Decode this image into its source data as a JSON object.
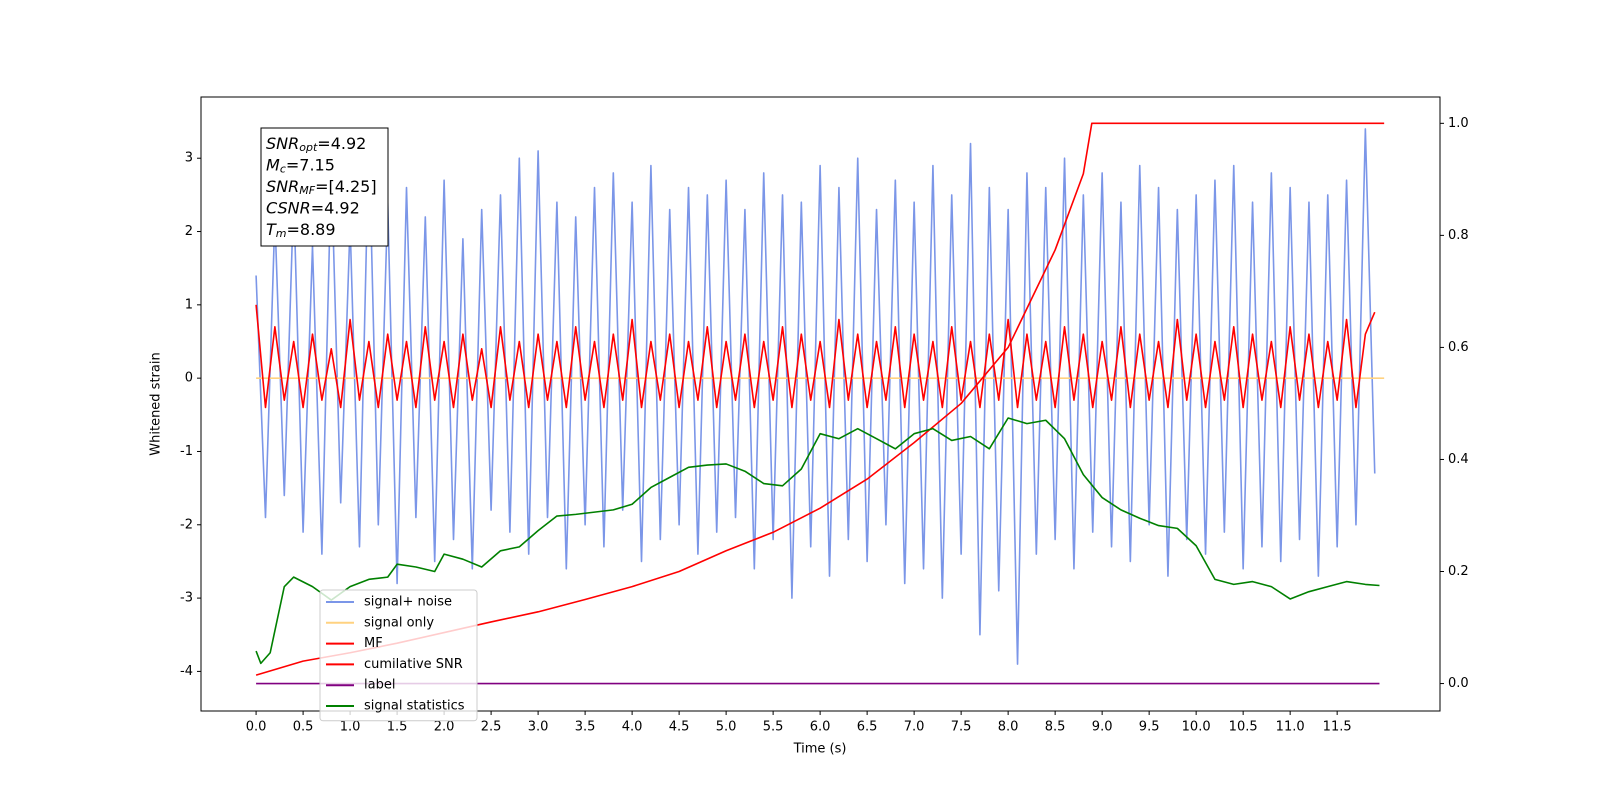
{
  "chart_data": {
    "type": "line",
    "xlabel": "Time (s)",
    "ylabel": "Whitened strain",
    "xlim": [
      -0.586,
      12.594
    ],
    "ylim": [
      -4.54,
      3.835
    ],
    "y2lim": [
      -0.049,
      1.047
    ],
    "xticks": [
      {
        "value": 0,
        "label": "0.0"
      },
      0.5,
      {
        "value": 1,
        "label": "1.0"
      },
      1.5,
      {
        "value": 2,
        "label": "2.0"
      },
      2.5,
      {
        "value": 3,
        "label": "3.0"
      },
      3.5,
      {
        "value": 4,
        "label": "4.0"
      },
      4.5,
      {
        "value": 5,
        "label": "5.0"
      },
      5.5,
      {
        "value": 6,
        "label": "6.0"
      },
      6.5,
      {
        "value": 7,
        "label": "7.0"
      },
      7.5,
      {
        "value": 8,
        "label": "8.0"
      },
      8.5,
      {
        "value": 9,
        "label": "9.0"
      },
      9.5,
      {
        "value": 10,
        "label": "10.0"
      },
      10.5,
      {
        "value": 11,
        "label": "11.0"
      },
      11.5
    ],
    "yticks": [
      -4,
      -3,
      -2,
      -1,
      0,
      1,
      2,
      3
    ],
    "y2ticks": [
      {
        "value": 0,
        "label": "0.0"
      },
      0.2,
      0.4,
      0.6,
      0.8,
      {
        "value": 1,
        "label": "1.0"
      }
    ],
    "legend": "lower left",
    "annotations": [
      {
        "text": "SNR",
        "sub": "opt",
        "rest": "=4.92"
      },
      {
        "text": "M",
        "sub": "c",
        "rest": "=7.15"
      },
      {
        "text": "SNR",
        "sub": "MF",
        "rest": "=[4.25]"
      },
      {
        "text": "CSNR",
        "rest": "=4.92"
      },
      {
        "text": "T",
        "sub": "m",
        "rest": "=8.89"
      }
    ],
    "x": [
      0,
      0.1,
      0.2,
      0.3,
      0.4,
      0.5,
      0.6,
      0.7,
      0.8,
      0.9,
      1,
      1.1,
      1.2,
      1.3,
      1.4,
      1.5,
      1.6,
      1.7,
      1.8,
      1.9,
      2,
      2.1,
      2.2,
      2.3,
      2.4,
      2.5,
      2.6,
      2.7,
      2.8,
      2.9,
      3,
      3.1,
      3.2,
      3.3,
      3.4,
      3.5,
      3.6,
      3.7,
      3.8,
      3.9,
      4,
      4.1,
      4.2,
      4.3,
      4.4,
      4.5,
      4.6,
      4.7,
      4.8,
      4.9,
      5,
      5.1,
      5.2,
      5.3,
      5.4,
      5.5,
      5.6,
      5.7,
      5.8,
      5.9,
      6,
      6.1,
      6.2,
      6.3,
      6.4,
      6.5,
      6.6,
      6.7,
      6.8,
      6.9,
      7,
      7.1,
      7.2,
      7.3,
      7.4,
      7.5,
      7.6,
      7.7,
      7.8,
      7.9,
      8,
      8.1,
      8.2,
      8.3,
      8.4,
      8.5,
      8.6,
      8.7,
      8.8,
      8.9,
      9,
      9.1,
      9.2,
      9.3,
      9.4,
      9.5,
      9.6,
      9.7,
      9.8,
      9.9,
      10,
      10.1,
      10.2,
      10.3,
      10.4,
      10.5,
      10.6,
      10.7,
      10.8,
      10.9,
      11,
      11.1,
      11.2,
      11.3,
      11.4,
      11.5,
      11.6,
      11.7,
      11.8,
      11.9
    ],
    "series": [
      {
        "name": "signal+ noise",
        "color": "#7b96e8",
        "values": [
          1.4,
          -1.9,
          2.2,
          -1.6,
          2.5,
          -2.1,
          1.8,
          -2.4,
          2.9,
          -1.7,
          2.1,
          -2.3,
          3.3,
          -2.0,
          2.4,
          -2.8,
          2.6,
          -1.9,
          2.2,
          -2.5,
          2.7,
          -2.2,
          1.9,
          -2.6,
          2.3,
          -1.8,
          2.5,
          -2.1,
          3.0,
          -2.4,
          3.1,
          -1.9,
          2.4,
          -2.6,
          2.2,
          -2.0,
          2.6,
          -2.3,
          2.8,
          -1.8,
          2.4,
          -2.5,
          2.9,
          -2.2,
          2.3,
          -2.0,
          2.6,
          -2.4,
          2.5,
          -2.1,
          2.7,
          -1.9,
          2.3,
          -2.6,
          2.8,
          -2.2,
          2.5,
          -3.0,
          2.4,
          -2.3,
          2.9,
          -2.7,
          2.6,
          -2.2,
          3.0,
          -2.5,
          2.3,
          -2.0,
          2.7,
          -2.8,
          2.4,
          -2.6,
          2.9,
          -3.0,
          2.5,
          -2.4,
          3.2,
          -3.5,
          2.6,
          -2.9,
          2.3,
          -3.9,
          2.8,
          -2.4,
          2.6,
          -2.2,
          3.0,
          -2.6,
          2.5,
          -2.1,
          2.8,
          -2.3,
          2.4,
          -2.5,
          2.9,
          -2.0,
          2.6,
          -2.7,
          2.3,
          -2.2,
          2.5,
          -2.4,
          2.7,
          -2.1,
          2.9,
          -2.6,
          2.4,
          -2.3,
          2.8,
          -2.5,
          2.6,
          -2.2,
          2.4,
          -2.7,
          2.5,
          -2.3,
          2.7,
          -2.0,
          3.4,
          -1.3
        ]
      },
      {
        "name": "signal only",
        "color": "#ffd280",
        "x": [
          0,
          12
        ],
        "values": [
          0,
          0
        ]
      },
      {
        "name": "MF",
        "color": "#ff0000",
        "values": [
          1.0,
          -0.4,
          0.7,
          -0.3,
          0.5,
          -0.4,
          0.6,
          -0.3,
          0.4,
          -0.4,
          0.8,
          -0.3,
          0.5,
          -0.4,
          0.6,
          -0.3,
          0.5,
          -0.4,
          0.7,
          -0.3,
          0.5,
          -0.4,
          0.6,
          -0.3,
          0.4,
          -0.4,
          0.7,
          -0.3,
          0.5,
          -0.4,
          0.6,
          -0.3,
          0.5,
          -0.4,
          0.7,
          -0.3,
          0.5,
          -0.4,
          0.6,
          -0.3,
          0.8,
          -0.4,
          0.5,
          -0.3,
          0.6,
          -0.4,
          0.5,
          -0.3,
          0.7,
          -0.4,
          0.5,
          -0.3,
          0.6,
          -0.4,
          0.5,
          -0.3,
          0.7,
          -0.4,
          0.6,
          -0.3,
          0.5,
          -0.4,
          0.8,
          -0.3,
          0.6,
          -0.4,
          0.5,
          -0.3,
          0.7,
          -0.4,
          0.6,
          -0.3,
          0.5,
          -0.4,
          0.7,
          -0.3,
          0.5,
          -0.4,
          0.6,
          -0.3,
          0.8,
          -0.4,
          0.6,
          -0.3,
          0.5,
          -0.4,
          0.7,
          -0.3,
          0.6,
          -0.4,
          0.5,
          -0.3,
          0.7,
          -0.4,
          0.6,
          -0.3,
          0.5,
          -0.4,
          0.8,
          -0.3,
          0.6,
          -0.4,
          0.5,
          -0.3,
          0.7,
          -0.4,
          0.6,
          -0.3,
          0.5,
          -0.4,
          0.7,
          -0.3,
          0.6,
          -0.4,
          0.5,
          -0.3,
          0.8,
          -0.4,
          0.6,
          0.9
        ]
      },
      {
        "name": "cumilative SNR",
        "color": "#ff0000",
        "axis": "y2",
        "x": [
          0,
          0.5,
          1,
          1.5,
          2,
          2.5,
          3,
          3.5,
          4,
          4.5,
          5,
          5.5,
          6,
          6.5,
          7,
          7.5,
          8,
          8.5,
          8.8,
          8.89,
          12.0
        ],
        "values": [
          0.015,
          0.04,
          0.055,
          0.072,
          0.091,
          0.11,
          0.128,
          0.15,
          0.173,
          0.2,
          0.237,
          0.27,
          0.313,
          0.365,
          0.43,
          0.5,
          0.6,
          0.774,
          0.91,
          1.0,
          1.0
        ]
      },
      {
        "name": "label",
        "color": "#800080",
        "axis": "y2",
        "x": [
          0,
          11.95
        ],
        "values": [
          0,
          0
        ]
      },
      {
        "name": "signal statistics",
        "color": "#008000",
        "axis": "y2",
        "x": [
          0,
          0.05,
          0.15,
          0.3,
          0.4,
          0.6,
          0.8,
          1.0,
          1.2,
          1.4,
          1.5,
          1.7,
          1.9,
          2.0,
          2.2,
          2.4,
          2.6,
          2.8,
          3.0,
          3.2,
          3.4,
          3.6,
          3.8,
          4.0,
          4.2,
          4.4,
          4.6,
          4.8,
          5.0,
          5.2,
          5.4,
          5.6,
          5.8,
          6.0,
          6.2,
          6.4,
          6.6,
          6.8,
          7.0,
          7.2,
          7.4,
          7.6,
          7.8,
          8.0,
          8.2,
          8.4,
          8.6,
          8.8,
          9.0,
          9.2,
          9.4,
          9.6,
          9.8,
          10.0,
          10.2,
          10.4,
          10.6,
          10.8,
          11.0,
          11.2,
          11.4,
          11.6,
          11.8,
          11.95
        ],
        "values": [
          0.058,
          0.036,
          0.055,
          0.173,
          0.19,
          0.173,
          0.149,
          0.173,
          0.186,
          0.19,
          0.213,
          0.208,
          0.2,
          0.231,
          0.222,
          0.208,
          0.237,
          0.244,
          0.273,
          0.299,
          0.302,
          0.306,
          0.31,
          0.32,
          0.35,
          0.368,
          0.386,
          0.39,
          0.392,
          0.379,
          0.357,
          0.353,
          0.383,
          0.446,
          0.437,
          0.455,
          0.437,
          0.419,
          0.446,
          0.455,
          0.434,
          0.441,
          0.419,
          0.474,
          0.464,
          0.47,
          0.437,
          0.373,
          0.332,
          0.31,
          0.295,
          0.282,
          0.277,
          0.246,
          0.186,
          0.177,
          0.182,
          0.173,
          0.151,
          0.164,
          0.173,
          0.182,
          0.177,
          0.175
        ]
      }
    ]
  }
}
